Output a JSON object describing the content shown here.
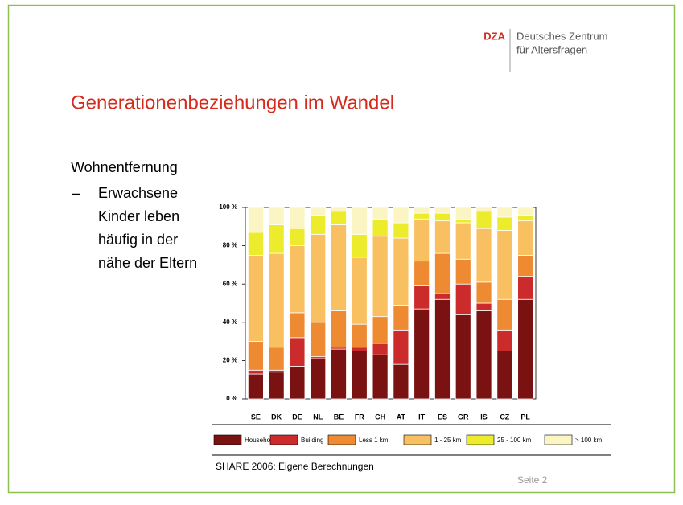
{
  "header": {
    "logo": "DZA",
    "org_lines": [
      "Deutsches Zentrum",
      "für Altersfragen"
    ]
  },
  "title": "Generationenbeziehungen im Wandel",
  "heading": "Wohnentfernung",
  "bullet": {
    "marker": "–",
    "lines": [
      "Erwachsene",
      "Kinder leben",
      "häufig in der",
      "nähe der Eltern"
    ]
  },
  "source": "SHARE 2006: Eigene Berechnungen",
  "page": "Seite 2",
  "chart_data": {
    "type": "stacked_bar",
    "categories": [
      "SE",
      "DK",
      "DE",
      "NL",
      "BE",
      "FR",
      "CH",
      "AT",
      "IT",
      "ES",
      "GR",
      "IS",
      "CZ",
      "PL"
    ],
    "series": [
      {
        "name": "Household",
        "color": "#7a1212",
        "values": [
          13,
          14,
          17,
          21,
          26,
          25,
          23,
          18,
          47,
          52,
          44,
          46,
          25,
          52
        ]
      },
      {
        "name": "Building",
        "color": "#cc2b2b",
        "values": [
          2,
          1,
          15,
          1,
          1,
          2,
          6,
          18,
          12,
          3,
          16,
          4,
          11,
          12
        ]
      },
      {
        "name": "Less 1 km",
        "color": "#ee8a32",
        "values": [
          15,
          12,
          13,
          18,
          19,
          12,
          14,
          13,
          13,
          21,
          13,
          11,
          16,
          11
        ]
      },
      {
        "name": "1 - 25 km",
        "color": "#f8c061",
        "values": [
          45,
          49,
          35,
          46,
          45,
          35,
          42,
          35,
          22,
          17,
          19,
          28,
          36,
          18
        ]
      },
      {
        "name": "25 - 100 km",
        "color": "#ecec2c",
        "values": [
          12,
          15,
          9,
          10,
          7,
          12,
          9,
          8,
          3,
          4,
          2,
          9,
          7,
          3
        ]
      },
      {
        "name": "> 100 km",
        "color": "#faf5c2",
        "values": [
          13,
          9,
          11,
          4,
          2,
          14,
          6,
          8,
          3,
          3,
          6,
          2,
          5,
          4
        ]
      }
    ],
    "ylim": [
      0,
      100
    ],
    "yticks": [
      {
        "value": 0,
        "label": "0 %"
      },
      {
        "value": 20,
        "label": "20 %"
      },
      {
        "value": 40,
        "label": "40 %"
      },
      {
        "value": 60,
        "label": "60 %"
      },
      {
        "value": 80,
        "label": "80 %"
      },
      {
        "value": 100,
        "label": "100 %"
      }
    ],
    "grid": false
  }
}
